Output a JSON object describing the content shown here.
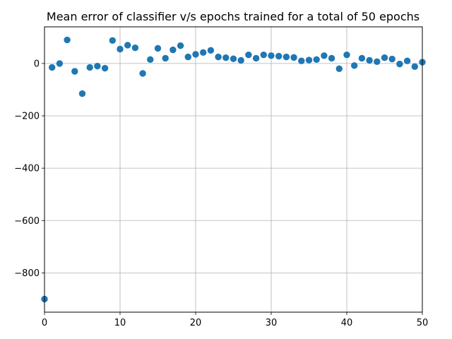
{
  "chart_data": {
    "type": "scatter",
    "title": "Mean error of classifier v/s epochs trained for a total of 50 epochs",
    "xlabel": "",
    "ylabel": "",
    "xlim": [
      0,
      50
    ],
    "ylim": [
      -950,
      140
    ],
    "xticks": [
      0,
      10,
      20,
      30,
      40,
      50
    ],
    "yticks": [
      0,
      -200,
      -400,
      -600,
      -800
    ],
    "ytick_labels": [
      "0",
      "−200",
      "−400",
      "−600",
      "−800"
    ],
    "grid": true,
    "marker_color": "#1f77b4",
    "series": [
      {
        "x": [
          0,
          1,
          2,
          3,
          4,
          5,
          6,
          7,
          8,
          9,
          10,
          11,
          12,
          13,
          14,
          15,
          16,
          17,
          18,
          19,
          20,
          21,
          22,
          23,
          24,
          25,
          26,
          27,
          28,
          29,
          30,
          31,
          32,
          33,
          34,
          35,
          36,
          37,
          38,
          39,
          40,
          41,
          42,
          43,
          44,
          45,
          46,
          47,
          48,
          49,
          50
        ],
        "y": [
          -900,
          -15,
          0,
          90,
          -30,
          -115,
          -15,
          -10,
          -18,
          88,
          55,
          70,
          60,
          -38,
          15,
          58,
          20,
          52,
          68,
          25,
          35,
          42,
          50,
          25,
          22,
          18,
          12,
          33,
          20,
          33,
          30,
          28,
          25,
          23,
          10,
          13,
          15,
          30,
          20,
          -20,
          33,
          -8,
          20,
          12,
          7,
          22,
          17,
          -2,
          10,
          -12,
          5
        ]
      }
    ]
  }
}
